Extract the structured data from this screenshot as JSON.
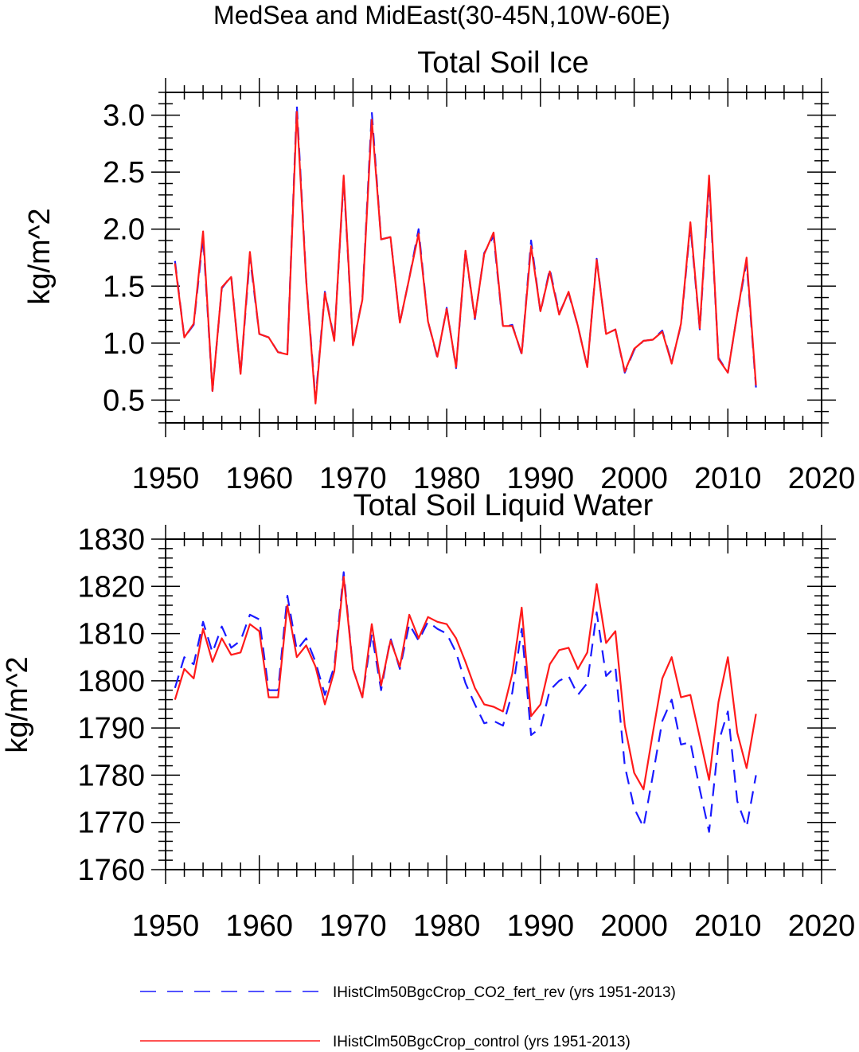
{
  "figure": {
    "title": "MedSea and MidEast(30-45N,10W-60E)"
  },
  "chart_data": [
    {
      "type": "line",
      "title": "Total Soil Ice",
      "xlabel": "",
      "ylabel": "kg/m^2",
      "xlim": [
        1950,
        2020
      ],
      "ylim": [
        0.3,
        3.2
      ],
      "xticks": [
        "1950",
        "1960",
        "1970",
        "1980",
        "1990",
        "2000",
        "2010",
        "2020"
      ],
      "yticks": [
        "0.5",
        "1.0",
        "1.5",
        "2.0",
        "2.5",
        "3.0"
      ],
      "x": [
        1951,
        1952,
        1953,
        1954,
        1955,
        1956,
        1957,
        1958,
        1959,
        1960,
        1961,
        1962,
        1963,
        1964,
        1965,
        1966,
        1967,
        1968,
        1969,
        1970,
        1971,
        1972,
        1973,
        1974,
        1975,
        1976,
        1977,
        1978,
        1979,
        1980,
        1981,
        1982,
        1983,
        1984,
        1985,
        1986,
        1987,
        1988,
        1989,
        1990,
        1991,
        1992,
        1993,
        1994,
        1995,
        1996,
        1997,
        1998,
        1999,
        2000,
        2001,
        2002,
        2003,
        2004,
        2005,
        2006,
        2007,
        2008,
        2009,
        2010,
        2011,
        2012,
        2013
      ],
      "series": [
        {
          "name": "IHistClm50BgcCrop_CO2_fert_rev (yrs 1951-2013)",
          "color": "#1a1aff",
          "dash": "dashed",
          "values": [
            1.72,
            1.05,
            1.16,
            1.93,
            0.58,
            1.48,
            1.59,
            0.73,
            1.76,
            1.08,
            1.05,
            0.92,
            0.91,
            3.09,
            1.56,
            0.5,
            1.45,
            1.03,
            2.44,
            0.98,
            1.39,
            3.03,
            1.91,
            1.93,
            1.18,
            1.57,
            2.0,
            1.19,
            0.87,
            1.31,
            0.78,
            1.81,
            1.21,
            1.79,
            1.94,
            1.14,
            1.16,
            0.9,
            1.9,
            1.27,
            1.65,
            1.26,
            1.44,
            1.15,
            0.79,
            1.74,
            1.08,
            1.12,
            0.74,
            0.94,
            1.02,
            1.03,
            1.11,
            0.83,
            1.16,
            2.03,
            1.12,
            2.41,
            0.87,
            0.74,
            1.26,
            1.71,
            0.61
          ]
        },
        {
          "name": "IHistClm50BgcCrop_control (yrs 1951-2013)",
          "color": "#ff1a1a",
          "dash": "solid",
          "values": [
            1.7,
            1.05,
            1.17,
            1.98,
            0.58,
            1.49,
            1.58,
            0.73,
            1.8,
            1.08,
            1.05,
            0.92,
            0.9,
            3.03,
            1.55,
            0.47,
            1.44,
            1.02,
            2.47,
            0.98,
            1.38,
            2.96,
            1.91,
            1.93,
            1.18,
            1.57,
            1.96,
            1.19,
            0.88,
            1.3,
            0.79,
            1.81,
            1.22,
            1.78,
            1.97,
            1.15,
            1.15,
            0.91,
            1.85,
            1.28,
            1.63,
            1.25,
            1.45,
            1.15,
            0.79,
            1.73,
            1.08,
            1.12,
            0.75,
            0.95,
            1.02,
            1.03,
            1.1,
            0.82,
            1.17,
            2.06,
            1.13,
            2.47,
            0.86,
            0.74,
            1.26,
            1.75,
            0.63
          ]
        }
      ]
    },
    {
      "type": "line",
      "title": "Total Soil Liquid Water",
      "xlabel": "",
      "ylabel": "kg/m^2",
      "xlim": [
        1950,
        2020
      ],
      "ylim": [
        1760,
        1830
      ],
      "xticks": [
        "1950",
        "1960",
        "1970",
        "1980",
        "1990",
        "2000",
        "2010",
        "2020"
      ],
      "yticks": [
        "1760",
        "1770",
        "1780",
        "1790",
        "1800",
        "1810",
        "1820",
        "1830"
      ],
      "x": [
        1951,
        1952,
        1953,
        1954,
        1955,
        1956,
        1957,
        1958,
        1959,
        1960,
        1961,
        1962,
        1963,
        1964,
        1965,
        1966,
        1967,
        1968,
        1969,
        1970,
        1971,
        1972,
        1973,
        1974,
        1975,
        1976,
        1977,
        1978,
        1979,
        1980,
        1981,
        1982,
        1983,
        1984,
        1985,
        1986,
        1987,
        1988,
        1989,
        1990,
        1991,
        1992,
        1993,
        1994,
        1995,
        1996,
        1997,
        1998,
        1999,
        2000,
        2001,
        2002,
        2003,
        2004,
        2005,
        2006,
        2007,
        2008,
        2009,
        2010,
        2011,
        2012,
        2013
      ],
      "series": [
        {
          "name": "IHistClm50BgcCrop_CO2_fert_rev (yrs 1951-2013)",
          "color": "#1a1aff",
          "dash": "dashed",
          "values": [
            1798.5,
            1805.0,
            1803.5,
            1812.5,
            1806.0,
            1811.5,
            1807.0,
            1808.5,
            1814.0,
            1813.0,
            1798.0,
            1798.0,
            1818.0,
            1806.5,
            1809.0,
            1804.0,
            1797.0,
            1803.0,
            1823.0,
            1802.5,
            1796.5,
            1810.0,
            1798.0,
            1809.0,
            1802.5,
            1812.0,
            1808.5,
            1812.5,
            1811.0,
            1810.0,
            1806.0,
            1799.5,
            1795.0,
            1791.0,
            1791.5,
            1790.5,
            1797.5,
            1811.0,
            1788.5,
            1790.0,
            1798.0,
            1800.0,
            1801.0,
            1797.0,
            1799.5,
            1814.5,
            1801.0,
            1803.0,
            1782.0,
            1773.0,
            1769.0,
            1780.0,
            1791.5,
            1796.0,
            1786.5,
            1787.0,
            1777.0,
            1768.0,
            1787.0,
            1793.5,
            1774.5,
            1769.0,
            1780.0
          ]
        },
        {
          "name": "IHistClm50BgcCrop_control (yrs 1951-2013)",
          "color": "#ff1a1a",
          "dash": "solid",
          "values": [
            1796.0,
            1802.5,
            1800.5,
            1811.0,
            1804.0,
            1809.0,
            1805.5,
            1806.0,
            1812.0,
            1810.5,
            1796.5,
            1796.5,
            1816.0,
            1805.0,
            1807.5,
            1803.0,
            1795.0,
            1802.0,
            1822.0,
            1802.5,
            1796.5,
            1812.0,
            1799.0,
            1808.5,
            1803.0,
            1814.0,
            1809.0,
            1813.5,
            1812.5,
            1812.0,
            1809.0,
            1804.0,
            1798.5,
            1795.0,
            1794.5,
            1793.5,
            1801.5,
            1815.5,
            1792.5,
            1795.0,
            1803.5,
            1806.5,
            1807.0,
            1802.5,
            1806.0,
            1820.5,
            1808.0,
            1810.5,
            1790.5,
            1780.5,
            1777.0,
            1789.0,
            1800.5,
            1805.0,
            1796.5,
            1797.0,
            1788.0,
            1779.0,
            1795.5,
            1805.0,
            1789.0,
            1781.5,
            1793.0
          ]
        }
      ]
    }
  ],
  "legend": {
    "items": [
      {
        "label": "IHistClm50BgcCrop_CO2_fert_rev (yrs 1951-2013)",
        "color": "#1a1aff",
        "dash": "dashed"
      },
      {
        "label": "IHistClm50BgcCrop_control (yrs 1951-2013)",
        "color": "#ff1a1a",
        "dash": "solid"
      }
    ]
  }
}
